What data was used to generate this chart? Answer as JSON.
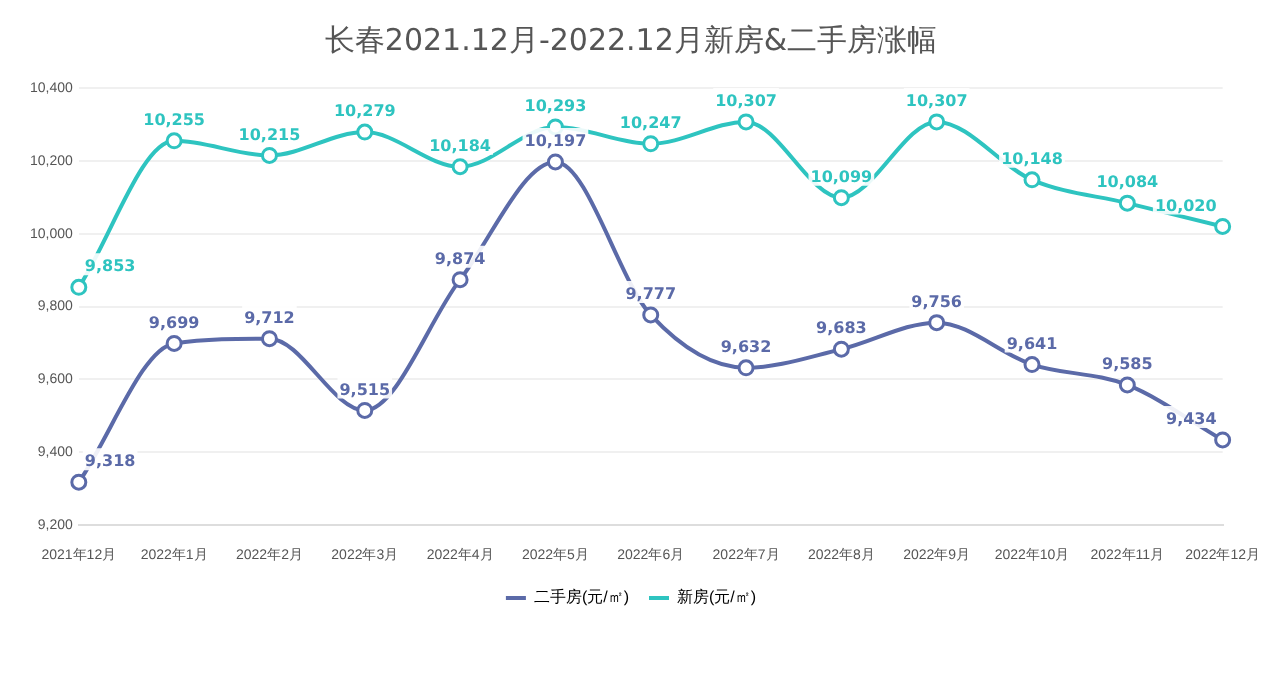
{
  "chart_data": {
    "type": "line",
    "title": "长春2021.12月-2022.12月新房&二手房涨幅",
    "categories": [
      "2021年12月",
      "2022年1月",
      "2022年2月",
      "2022年3月",
      "2022年4月",
      "2022年5月",
      "2022年6月",
      "2022年7月",
      "2022年8月",
      "2022年9月",
      "2022年10月",
      "2022年11月",
      "2022年12月"
    ],
    "series": [
      {
        "name": "二手房(元/㎡)",
        "color": "#5b6aa8",
        "values": [
          9318,
          9699,
          9712,
          9515,
          9874,
          10197,
          9777,
          9632,
          9683,
          9756,
          9641,
          9585,
          9434
        ],
        "value_labels": [
          "9,318",
          "9,699",
          "9,712",
          "9,515",
          "9,874",
          "10,197",
          "9,777",
          "9,632",
          "9,683",
          "9,756",
          "9,641",
          "9,585",
          "9,434"
        ]
      },
      {
        "name": "新房(元/㎡)",
        "color": "#2ec4c0",
        "values": [
          9853,
          10255,
          10215,
          10279,
          10184,
          10293,
          10247,
          10307,
          10099,
          10307,
          10148,
          10084,
          10020
        ],
        "value_labels": [
          "9,853",
          "10,255",
          "10,215",
          "10,279",
          "10,184",
          "10,293",
          "10,247",
          "10,307",
          "10,099",
          "10,307",
          "10,148",
          "10,084",
          "10,020"
        ]
      }
    ],
    "ylim": [
      9200,
      10400
    ],
    "yticks": [
      {
        "value": 9200,
        "label": "9,200"
      },
      {
        "value": 9400,
        "label": "9,400"
      },
      {
        "value": 9600,
        "label": "9,600"
      },
      {
        "value": 9800,
        "label": "9,800"
      },
      {
        "value": 10000,
        "label": "10,000"
      },
      {
        "value": 10200,
        "label": "10,200"
      },
      {
        "value": 10400,
        "label": "10,400"
      }
    ],
    "grid": "y",
    "legend": "bottom",
    "marker": "circle",
    "line_style": "solid"
  }
}
